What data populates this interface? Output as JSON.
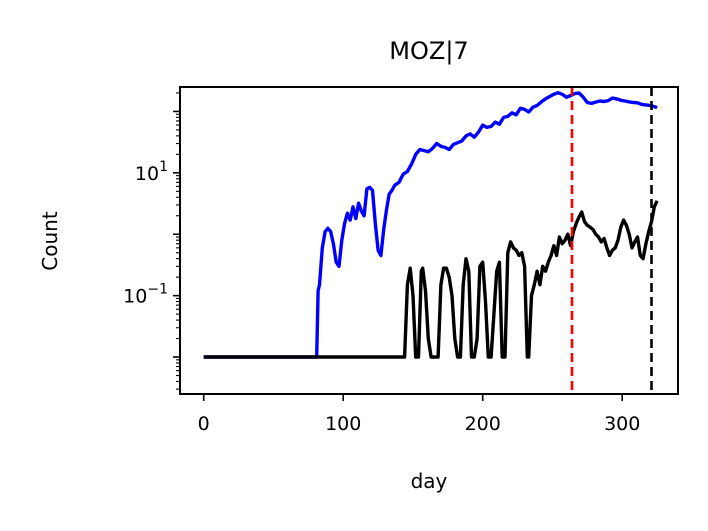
{
  "chart_data": {
    "type": "line",
    "title": "MOZ|7",
    "xlabel": "day",
    "ylabel": "Count",
    "xlim": [
      -17,
      340
    ],
    "ylim": [
      0.0025,
      250
    ],
    "yscale": "log",
    "x_ticks": [
      0,
      100,
      200,
      300
    ],
    "x_tick_labels": [
      "0",
      "100",
      "200",
      "300"
    ],
    "y_ticks": [
      0.1,
      10
    ],
    "y_tick_labels": [
      {
        "base": "10",
        "exp": "−1"
      },
      {
        "base": "10",
        "exp": "1"
      }
    ],
    "grid": false,
    "series": [
      {
        "color": "#0000ff",
        "x": [
          0,
          60,
          81,
          82,
          83,
          85,
          87,
          89,
          91,
          93,
          95,
          97,
          99,
          101,
          103,
          105,
          107,
          109,
          111,
          113,
          115,
          117,
          119,
          121,
          123,
          125,
          127,
          129,
          131,
          133,
          135,
          137,
          140,
          143,
          146,
          149,
          152,
          155,
          158,
          161,
          164,
          167,
          170,
          173,
          176,
          179,
          182,
          185,
          188,
          191,
          194,
          197,
          200,
          203,
          206,
          209,
          212,
          215,
          218,
          221,
          224,
          227,
          230,
          233,
          236,
          239,
          242,
          245,
          248,
          251,
          254,
          257,
          260,
          263,
          266,
          269,
          272,
          275,
          278,
          281,
          284,
          287,
          290,
          293,
          296,
          299,
          302,
          305,
          308,
          311,
          314,
          317,
          320,
          323,
          325
        ],
        "y": [
          0.01,
          0.01,
          0.01,
          0.12,
          0.15,
          0.6,
          1.1,
          1.25,
          1.1,
          0.7,
          0.35,
          0.3,
          0.8,
          1.5,
          2.2,
          1.7,
          2.8,
          1.8,
          3.2,
          2.4,
          2.0,
          5.5,
          5.8,
          5.2,
          1.5,
          0.55,
          0.45,
          1.2,
          2.5,
          4.5,
          5.2,
          6.3,
          7.0,
          9.5,
          10.5,
          14,
          20,
          24,
          23,
          22,
          25,
          30,
          27,
          26,
          24,
          29,
          31,
          33,
          40,
          43,
          38,
          46,
          60,
          55,
          57,
          67,
          62,
          80,
          83,
          95,
          88,
          113,
          108,
          98,
          117,
          125,
          143,
          160,
          175,
          190,
          202,
          190,
          170,
          182,
          195,
          200,
          172,
          140,
          135,
          142,
          148,
          145,
          150,
          165,
          160,
          152,
          148,
          143,
          140,
          138,
          130,
          128,
          125,
          120,
          115
        ]
      },
      {
        "color": "#000000",
        "x": [
          0,
          143,
          144,
          146,
          148,
          150,
          152,
          154,
          156,
          157,
          159,
          161,
          163,
          164,
          166,
          168,
          170,
          172,
          174,
          176,
          178,
          180,
          182,
          184,
          186,
          188,
          190,
          192,
          194,
          196,
          198,
          200,
          202,
          204,
          206,
          208,
          210,
          212,
          214,
          216,
          218,
          220,
          222,
          224,
          226,
          228,
          230,
          232,
          233,
          235,
          237,
          239,
          241,
          243,
          245,
          247,
          249,
          251,
          253,
          255,
          257,
          259,
          261,
          263,
          265,
          267,
          269,
          271,
          273,
          275,
          277,
          279,
          281,
          283,
          285,
          287,
          289,
          291,
          293,
          295,
          297,
          299,
          301,
          303,
          305,
          307,
          309,
          311,
          313,
          315,
          317,
          319,
          321,
          323,
          325
        ],
        "y": [
          0.01,
          0.01,
          0.01,
          0.15,
          0.28,
          0.1,
          0.01,
          0.01,
          0.25,
          0.28,
          0.12,
          0.02,
          0.01,
          0.01,
          0.01,
          0.01,
          0.15,
          0.28,
          0.28,
          0.2,
          0.1,
          0.02,
          0.01,
          0.01,
          0.15,
          0.4,
          0.25,
          0.01,
          0.01,
          0.02,
          0.3,
          0.35,
          0.08,
          0.01,
          0.01,
          0.05,
          0.25,
          0.35,
          0.01,
          0.01,
          0.5,
          0.75,
          0.6,
          0.55,
          0.45,
          0.5,
          0.3,
          0.01,
          0.01,
          0.1,
          0.15,
          0.25,
          0.15,
          0.3,
          0.25,
          0.35,
          0.45,
          0.65,
          0.45,
          0.9,
          0.7,
          0.8,
          1.0,
          0.65,
          1.1,
          1.5,
          1.9,
          2.3,
          1.6,
          1.4,
          1.3,
          1.2,
          1.0,
          0.9,
          0.75,
          0.85,
          0.6,
          0.45,
          0.55,
          0.6,
          0.8,
          1.3,
          1.7,
          1.4,
          1.0,
          0.6,
          0.75,
          0.9,
          0.45,
          0.4,
          0.7,
          1.1,
          1.6,
          2.8,
          3.5
        ]
      }
    ],
    "vlines": [
      {
        "x": 264,
        "color": "#ff0000",
        "style": "dashed"
      },
      {
        "x": 321,
        "color": "#000000",
        "style": "dashed"
      }
    ]
  }
}
